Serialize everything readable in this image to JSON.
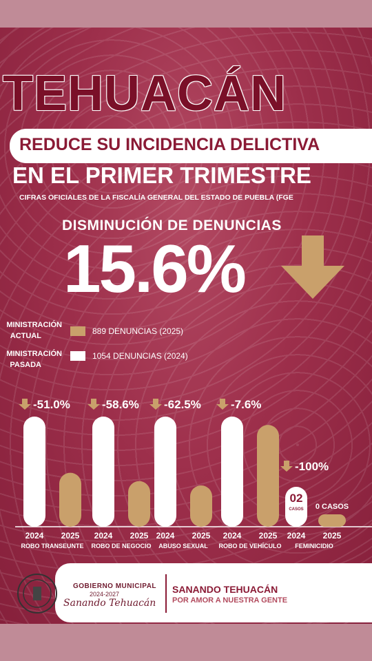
{
  "header": {
    "title": "TEHUACÁN",
    "subtitle1": "REDUCE SU INCIDENCIA DELICTIVA",
    "subtitle2": "EN EL PRIMER TRIMESTRE",
    "source": "CIFRAS OFICIALES DE LA FISCALÍA GENERAL DEL ESTADO DE PUEBLA (FGE"
  },
  "headline": {
    "label": "DISMINUCIÓN   DE DENUNCIAS",
    "value": "15.6%",
    "arrow_icon": "down-arrow-icon"
  },
  "legend": [
    {
      "label_line1": "MINISTRACIÓN",
      "label_line2": "ACTUAL",
      "text": "889 DENUNCIAS (2025)",
      "color": "#c9a06b"
    },
    {
      "label_line1": "MINISTRACIÓN",
      "label_line2": "PASADA",
      "text": "1054 DENUNCIAS (2024)",
      "color": "#ffffff"
    }
  ],
  "colors": {
    "bar_2024": "#ffffff",
    "bar_2025": "#c9a06b",
    "arrow": "#c9a06b",
    "brand": "#8a1a35"
  },
  "chart_data": {
    "type": "bar",
    "categories": [
      "ROBO TRANSEUNTE",
      "ROBO DE NEGOCIO",
      "ABUSO SEXUAL",
      "ROBO DE VEHÍCULO",
      "FEMINICIDIO"
    ],
    "x_labels": [
      "2024",
      "2025"
    ],
    "series": [
      {
        "name": "2024",
        "values": [
          100,
          100,
          100,
          100,
          2
        ]
      },
      {
        "name": "2025",
        "values": [
          49,
          41.4,
          37.5,
          92.4,
          0
        ]
      }
    ],
    "changes": [
      "-51.0%",
      "-58.6%",
      "-62.5%",
      "-7.6%",
      "-100%"
    ],
    "value_labels": {
      "feminicidio_2024": "02",
      "feminicidio_2024_unit": "CASOS",
      "feminicidio_2025": "0 CASOS"
    }
  },
  "footer": {
    "gov_title": "GOBIERNO MUNICIPAL",
    "gov_years": "2024-2027",
    "gov_slogan": "Sanando Tehuacán",
    "slogan_line1": "SANANDO TEHUACÁN",
    "slogan_line2": "POR AMOR A NUESTRA GENTE"
  }
}
